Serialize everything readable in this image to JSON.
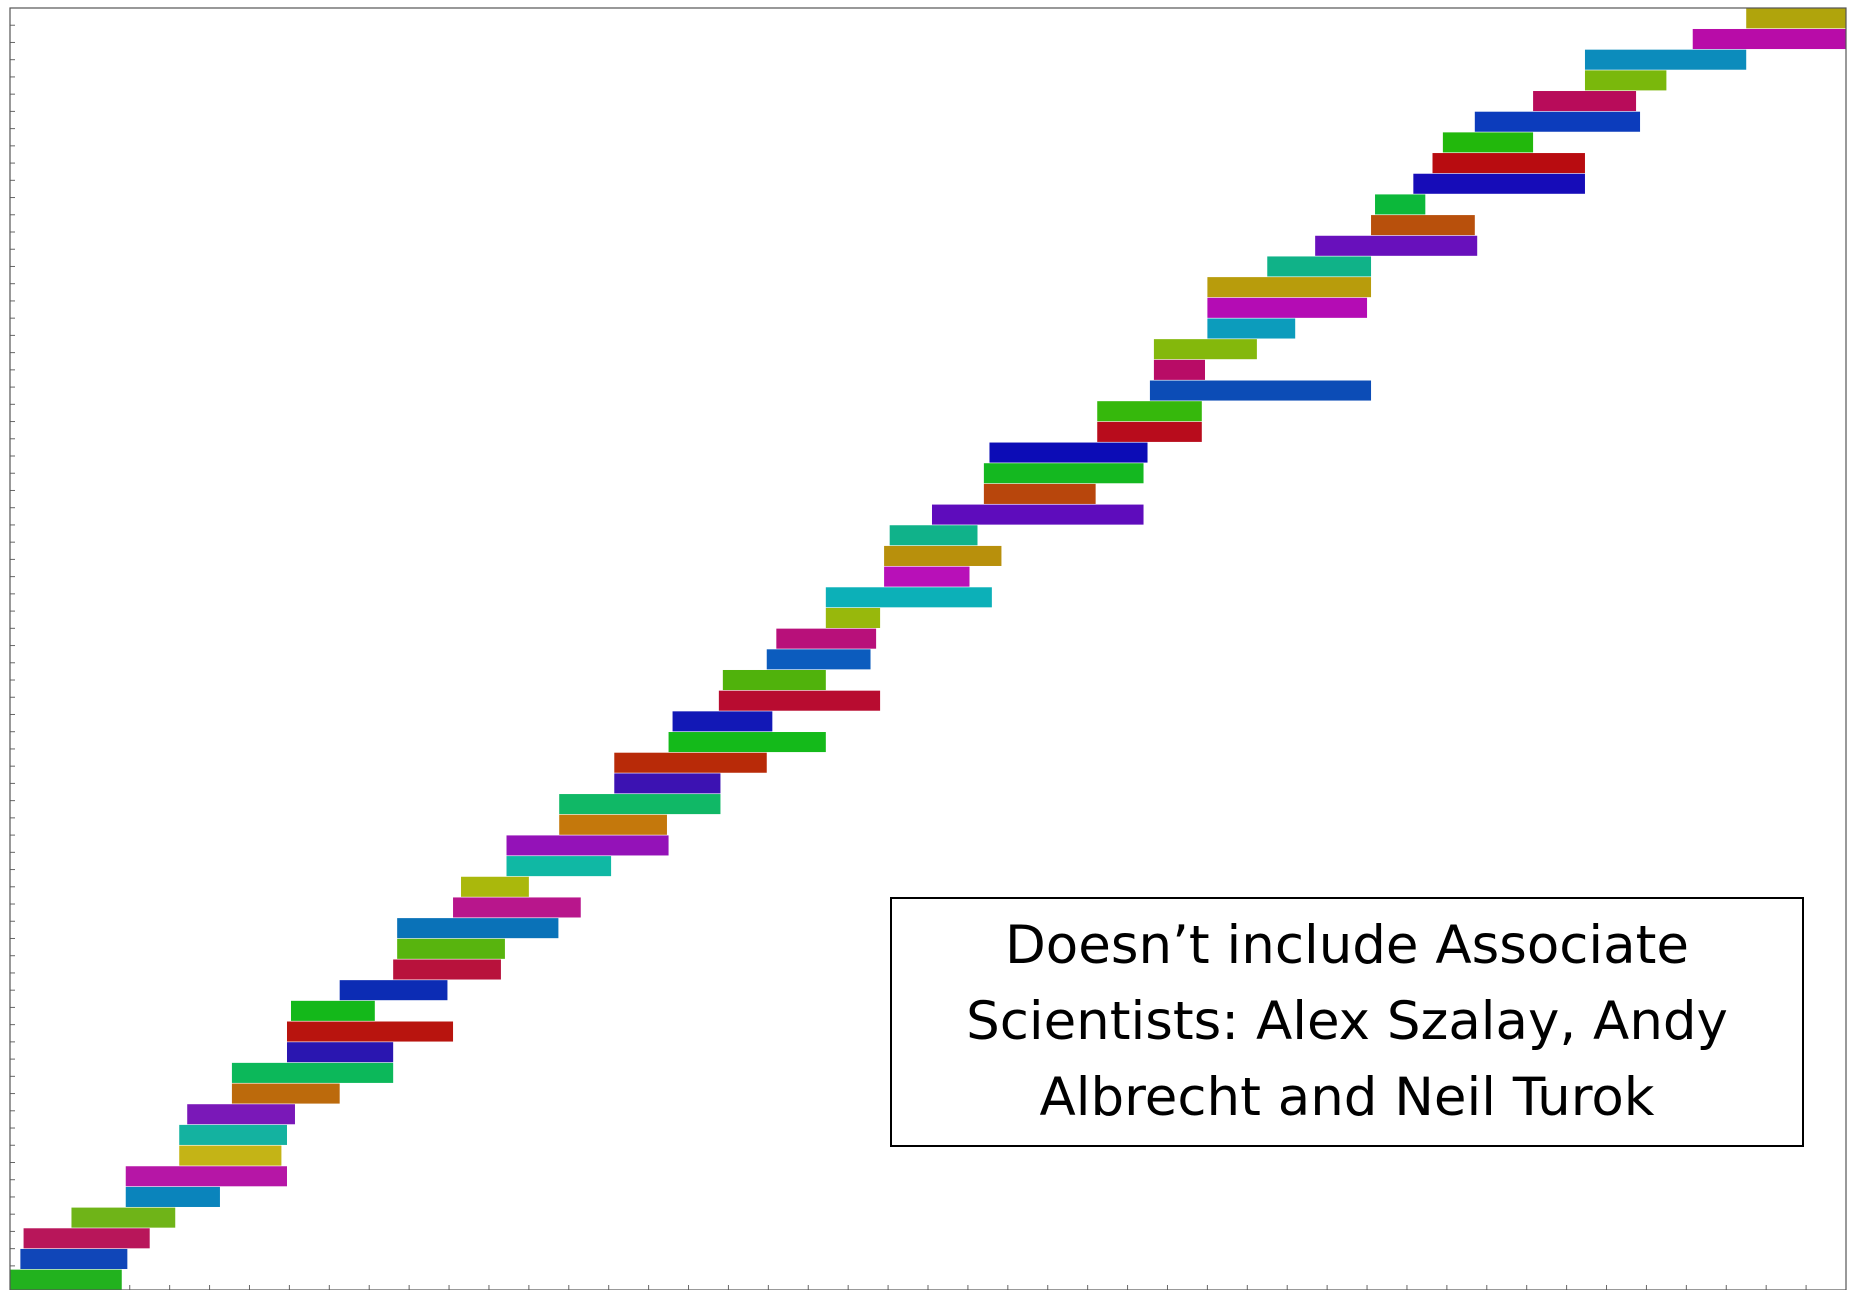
{
  "chart_data": {
    "type": "bar",
    "subtype": "horizontal-floating-timeline",
    "title": "",
    "xlabel": "",
    "ylabel": "",
    "xlim": [
      0,
      23
    ],
    "ylim": [
      0,
      62
    ],
    "grid": false,
    "legend": "none",
    "annotations": [
      "Doesn’t include Associate Scientists:  Alex Szalay, Andy Albrecht and Neil Turok"
    ],
    "bars": [
      {
        "row": 0,
        "start": 0.0,
        "end": 1.4,
        "color": "#22b21e"
      },
      {
        "row": 1,
        "start": 0.13,
        "end": 1.47,
        "color": "#1046b8"
      },
      {
        "row": 2,
        "start": 0.17,
        "end": 1.75,
        "color": "#b8165a"
      },
      {
        "row": 3,
        "start": 0.77,
        "end": 2.07,
        "color": "#6fb418"
      },
      {
        "row": 4,
        "start": 1.45,
        "end": 2.63,
        "color": "#0a84bc"
      },
      {
        "row": 5,
        "start": 1.45,
        "end": 3.47,
        "color": "#b616a6"
      },
      {
        "row": 6,
        "start": 2.12,
        "end": 3.4,
        "color": "#c4b416"
      },
      {
        "row": 7,
        "start": 2.12,
        "end": 3.47,
        "color": "#14b2a0"
      },
      {
        "row": 8,
        "start": 2.22,
        "end": 3.57,
        "color": "#7a18b8"
      },
      {
        "row": 9,
        "start": 2.78,
        "end": 4.13,
        "color": "#bc6a0c"
      },
      {
        "row": 10,
        "start": 2.78,
        "end": 4.8,
        "color": "#0cb85a"
      },
      {
        "row": 11,
        "start": 3.47,
        "end": 4.8,
        "color": "#2a16b0"
      },
      {
        "row": 12,
        "start": 3.47,
        "end": 5.55,
        "color": "#b8140e"
      },
      {
        "row": 13,
        "start": 3.52,
        "end": 4.57,
        "color": "#14b81a"
      },
      {
        "row": 14,
        "start": 4.13,
        "end": 5.48,
        "color": "#0c2cb4"
      },
      {
        "row": 15,
        "start": 4.8,
        "end": 6.15,
        "color": "#b8123c"
      },
      {
        "row": 16,
        "start": 4.85,
        "end": 6.2,
        "color": "#58b40e"
      },
      {
        "row": 17,
        "start": 4.85,
        "end": 6.87,
        "color": "#0a72b8"
      },
      {
        "row": 18,
        "start": 5.55,
        "end": 7.15,
        "color": "#b8168c"
      },
      {
        "row": 19,
        "start": 5.65,
        "end": 6.5,
        "color": "#aab80c"
      },
      {
        "row": 20,
        "start": 6.22,
        "end": 7.53,
        "color": "#10b8a4"
      },
      {
        "row": 21,
        "start": 6.22,
        "end": 8.25,
        "color": "#9412b8"
      },
      {
        "row": 22,
        "start": 6.88,
        "end": 8.23,
        "color": "#c4780c"
      },
      {
        "row": 23,
        "start": 6.88,
        "end": 8.9,
        "color": "#10b866"
      },
      {
        "row": 24,
        "start": 7.57,
        "end": 8.9,
        "color": "#3c12b2"
      },
      {
        "row": 25,
        "start": 7.57,
        "end": 9.48,
        "color": "#b82a08"
      },
      {
        "row": 26,
        "start": 8.25,
        "end": 10.22,
        "color": "#14ba1a"
      },
      {
        "row": 27,
        "start": 8.3,
        "end": 9.55,
        "color": "#1218b6"
      },
      {
        "row": 28,
        "start": 8.88,
        "end": 10.9,
        "color": "#b80c30"
      },
      {
        "row": 29,
        "start": 8.93,
        "end": 10.22,
        "color": "#50b20c"
      },
      {
        "row": 30,
        "start": 9.48,
        "end": 10.78,
        "color": "#0c5cbe"
      },
      {
        "row": 31,
        "start": 9.6,
        "end": 10.85,
        "color": "#b8107a"
      },
      {
        "row": 32,
        "start": 10.22,
        "end": 10.9,
        "color": "#98b80c"
      },
      {
        "row": 33,
        "start": 10.22,
        "end": 12.3,
        "color": "#0cb0b8"
      },
      {
        "row": 34,
        "start": 10.95,
        "end": 12.02,
        "color": "#b810b8"
      },
      {
        "row": 35,
        "start": 10.95,
        "end": 12.42,
        "color": "#b8900c"
      },
      {
        "row": 36,
        "start": 11.02,
        "end": 12.12,
        "color": "#10b28a"
      },
      {
        "row": 37,
        "start": 11.55,
        "end": 14.2,
        "color": "#5e0cbc"
      },
      {
        "row": 38,
        "start": 12.2,
        "end": 13.6,
        "color": "#b8460c"
      },
      {
        "row": 39,
        "start": 12.2,
        "end": 14.2,
        "color": "#14b820"
      },
      {
        "row": 40,
        "start": 12.27,
        "end": 14.25,
        "color": "#0c0cb6"
      },
      {
        "row": 41,
        "start": 13.62,
        "end": 14.93,
        "color": "#b80c1c"
      },
      {
        "row": 42,
        "start": 13.62,
        "end": 14.93,
        "color": "#36b80c"
      },
      {
        "row": 43,
        "start": 14.28,
        "end": 17.05,
        "color": "#0c4cb6"
      },
      {
        "row": 44,
        "start": 14.33,
        "end": 14.97,
        "color": "#b80c66"
      },
      {
        "row": 45,
        "start": 14.33,
        "end": 15.62,
        "color": "#84b80c"
      },
      {
        "row": 46,
        "start": 15.0,
        "end": 16.1,
        "color": "#0c9cbc"
      },
      {
        "row": 47,
        "start": 15.0,
        "end": 17.0,
        "color": "#b40cb4"
      },
      {
        "row": 48,
        "start": 15.0,
        "end": 17.05,
        "color": "#b89c0c"
      },
      {
        "row": 49,
        "start": 15.75,
        "end": 17.05,
        "color": "#10b288"
      },
      {
        "row": 50,
        "start": 16.35,
        "end": 18.38,
        "color": "#6810bc"
      },
      {
        "row": 51,
        "start": 17.05,
        "end": 18.35,
        "color": "#b8500c"
      },
      {
        "row": 52,
        "start": 17.1,
        "end": 17.73,
        "color": "#0cb83a"
      },
      {
        "row": 53,
        "start": 17.58,
        "end": 19.73,
        "color": "#160cb8"
      },
      {
        "row": 54,
        "start": 17.82,
        "end": 19.73,
        "color": "#b80c10"
      },
      {
        "row": 55,
        "start": 17.95,
        "end": 19.08,
        "color": "#22b80c"
      },
      {
        "row": 56,
        "start": 18.35,
        "end": 20.42,
        "color": "#0c3cbc"
      },
      {
        "row": 57,
        "start": 19.08,
        "end": 20.37,
        "color": "#b80c5a"
      },
      {
        "row": 58,
        "start": 19.73,
        "end": 20.75,
        "color": "#7ab80c"
      },
      {
        "row": 59,
        "start": 19.73,
        "end": 21.75,
        "color": "#0c8cbc"
      },
      {
        "row": 60,
        "start": 21.08,
        "end": 23.0,
        "color": "#b80ca8"
      },
      {
        "row": 61,
        "start": 21.75,
        "end": 23.0,
        "color": "#b0a40c"
      }
    ]
  }
}
